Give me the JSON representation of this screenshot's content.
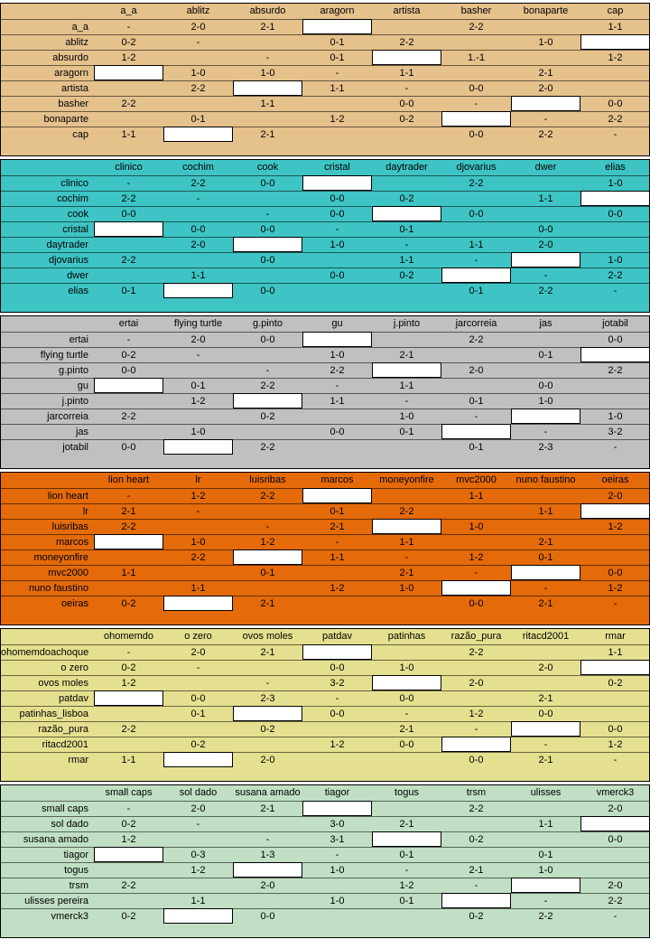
{
  "groups": [
    {
      "color": "#e5c18c",
      "columns": [
        "a_a",
        "ablitz",
        "absurdo",
        "aragorn",
        "artista",
        "basher",
        "bonaparte",
        "cap"
      ],
      "rows": [
        {
          "label": "a_a",
          "cells": [
            "-",
            "2-0",
            "2-1",
            null,
            "",
            "2-2",
            "",
            "1-1"
          ]
        },
        {
          "label": "ablitz",
          "cells": [
            "0-2",
            "-",
            "",
            "0-1",
            "2-2",
            "",
            "1-0",
            null
          ]
        },
        {
          "label": "absurdo",
          "cells": [
            "1-2",
            "",
            "-",
            "0-1",
            null,
            "1.-1",
            "",
            "1-2"
          ]
        },
        {
          "label": "aragorn",
          "cells": [
            null,
            "1-0",
            "1-0",
            "-",
            "1-1",
            "",
            "2-1",
            ""
          ]
        },
        {
          "label": "artista",
          "cells": [
            "",
            "2-2",
            null,
            "1-1",
            "-",
            "0-0",
            "2-0",
            ""
          ]
        },
        {
          "label": "basher",
          "cells": [
            "2-2",
            "",
            "1-1",
            "",
            "0-0",
            "-",
            null,
            "0-0"
          ]
        },
        {
          "label": "bonaparte",
          "cells": [
            "",
            "0-1",
            "",
            "1-2",
            "0-2",
            null,
            "-",
            "2-2"
          ]
        },
        {
          "label": "cap",
          "cells": [
            "1-1",
            null,
            "2-1",
            "",
            "",
            "0-0",
            "2-2",
            "-"
          ]
        }
      ]
    },
    {
      "color": "#3ec4c4",
      "columns": [
        "clinico",
        "cochim",
        "cook",
        "cristal",
        "daytrader",
        "djovarius",
        "dwer",
        "elias"
      ],
      "rows": [
        {
          "label": "clinico",
          "cells": [
            "-",
            "2-2",
            "0-0",
            null,
            "",
            "2-2",
            "",
            "1-0"
          ]
        },
        {
          "label": "cochim",
          "cells": [
            "2-2",
            "-",
            "",
            "0-0",
            "0-2",
            "",
            "1-1",
            null
          ]
        },
        {
          "label": "cook",
          "cells": [
            "0-0",
            "",
            "-",
            "0-0",
            null,
            "0-0",
            "",
            "0-0"
          ]
        },
        {
          "label": "cristal",
          "cells": [
            null,
            "0-0",
            "0-0",
            "-",
            "0-1",
            "",
            "0-0",
            ""
          ]
        },
        {
          "label": "daytrader",
          "cells": [
            "",
            "2-0",
            null,
            "1-0",
            "-",
            "1-1",
            "2-0",
            ""
          ]
        },
        {
          "label": "djovarius",
          "cells": [
            "2-2",
            "",
            "0-0",
            "",
            "1-1",
            "-",
            null,
            "1-0"
          ]
        },
        {
          "label": "dwer",
          "cells": [
            "",
            "1-1",
            "",
            "0-0",
            "0-2",
            null,
            "-",
            "2-2"
          ]
        },
        {
          "label": "elias",
          "cells": [
            "0-1",
            null,
            "0-0",
            "",
            "",
            "0-1",
            "2-2",
            "-"
          ]
        }
      ]
    },
    {
      "color": "#c0c0c0",
      "columns": [
        "ertai",
        "flying turtle",
        "g.pinto",
        "gu",
        "j.pinto",
        "jarcorreia",
        "jas",
        "jotabil"
      ],
      "rows": [
        {
          "label": "ertai",
          "cells": [
            "-",
            "2-0",
            "0-0",
            null,
            "",
            "2-2",
            "",
            "0-0"
          ]
        },
        {
          "label": "flying turtle",
          "cells": [
            "0-2",
            "-",
            "",
            "1-0",
            "2-1",
            "",
            "0-1",
            null
          ]
        },
        {
          "label": "g.pinto",
          "cells": [
            "0-0",
            "",
            "-",
            "2-2",
            null,
            "2-0",
            "",
            "2-2"
          ]
        },
        {
          "label": "gu",
          "cells": [
            null,
            "0-1",
            "2-2",
            "-",
            "1-1",
            "",
            "0-0",
            ""
          ]
        },
        {
          "label": "j.pinto",
          "cells": [
            "",
            "1-2",
            null,
            "1-1",
            "-",
            "0-1",
            "1-0",
            ""
          ]
        },
        {
          "label": "jarcorreia",
          "cells": [
            "2-2",
            "",
            "0-2",
            "",
            "1-0",
            "-",
            null,
            "1-0"
          ]
        },
        {
          "label": "jas",
          "cells": [
            "",
            "1-0",
            "",
            "0-0",
            "0-1",
            null,
            "-",
            "3-2"
          ]
        },
        {
          "label": "jotabil",
          "cells": [
            "0-0",
            null,
            "2-2",
            "",
            "",
            "0-1",
            "2-3",
            "-"
          ]
        }
      ]
    },
    {
      "color": "#e46a0a",
      "columns": [
        "lion heart",
        "lr",
        "luisribas",
        "marcos",
        "moneyonfire",
        "mvc2000",
        "nuno faustino",
        "oeiras"
      ],
      "rows": [
        {
          "label": "lion heart",
          "cells": [
            "-",
            "1-2",
            "2-2",
            null,
            "",
            "1-1",
            "",
            "2-0"
          ]
        },
        {
          "label": "lr",
          "cells": [
            "2-1",
            "-",
            "",
            "0-1",
            "2-2",
            "",
            "1-1",
            null
          ]
        },
        {
          "label": "luisribas",
          "cells": [
            "2-2",
            "",
            "-",
            "2-1",
            null,
            "1-0",
            "",
            "1-2"
          ]
        },
        {
          "label": "marcos",
          "cells": [
            null,
            "1-0",
            "1-2",
            "-",
            "1-1",
            "",
            "2-1",
            ""
          ]
        },
        {
          "label": "moneyonfire",
          "cells": [
            "",
            "2-2",
            null,
            "1-1",
            "-",
            "1-2",
            "0-1",
            ""
          ]
        },
        {
          "label": "mvc2000",
          "cells": [
            "1-1",
            "",
            "0-1",
            "",
            "2-1",
            "-",
            null,
            "0-0"
          ]
        },
        {
          "label": "nuno faustino",
          "cells": [
            "",
            "1-1",
            "",
            "1-2",
            "1-0",
            null,
            "-",
            "1-2"
          ]
        },
        {
          "label": "oeiras",
          "cells": [
            "0-2",
            null,
            "2-1",
            "",
            "",
            "0-0",
            "2-1",
            "-"
          ]
        }
      ]
    },
    {
      "color": "#e5e08f",
      "columns": [
        "ohomemdo",
        "o zero",
        "ovos moles",
        "patdav",
        "patinhas",
        "razão_pura",
        "ritacd2001",
        "rmar"
      ],
      "rows": [
        {
          "label": "ohomemdoachoque",
          "cells": [
            "-",
            "2-0",
            "2-1",
            null,
            "",
            "2-2",
            "",
            "1-1"
          ]
        },
        {
          "label": "o zero",
          "cells": [
            "0-2",
            "-",
            "",
            "0-0",
            "1-0",
            "",
            "2-0",
            null
          ]
        },
        {
          "label": "ovos moles",
          "cells": [
            "1-2",
            "",
            "-",
            "3-2",
            null,
            "2-0",
            "",
            "0-2"
          ]
        },
        {
          "label": "patdav",
          "cells": [
            null,
            "0-0",
            "2-3",
            "-",
            "0-0",
            "",
            "2-1",
            ""
          ]
        },
        {
          "label": "patinhas_lisboa",
          "cells": [
            "",
            "0-1",
            null,
            "0-0",
            "-",
            "1-2",
            "0-0",
            ""
          ]
        },
        {
          "label": "razão_pura",
          "cells": [
            "2-2",
            "",
            "0-2",
            "",
            "2-1",
            "-",
            null,
            "0-0"
          ]
        },
        {
          "label": "ritacd2001",
          "cells": [
            "",
            "0-2",
            "",
            "1-2",
            "0-0",
            null,
            "-",
            "1-2"
          ]
        },
        {
          "label": "rmar",
          "cells": [
            "1-1",
            null,
            "2-0",
            "",
            "",
            "0-0",
            "2-1",
            "-"
          ]
        }
      ]
    },
    {
      "color": "#c0dfc4",
      "columns": [
        "small caps",
        "sol dado",
        "susana amado",
        "tiagor",
        "togus",
        "trsm",
        "ulisses",
        "vmerck3"
      ],
      "rows": [
        {
          "label": "small caps",
          "cells": [
            "-",
            "2-0",
            "2-1",
            null,
            "",
            "2-2",
            "",
            "2-0"
          ]
        },
        {
          "label": "sol dado",
          "cells": [
            "0-2",
            "-",
            "",
            "3-0",
            "2-1",
            "",
            "1-1",
            null
          ]
        },
        {
          "label": "susana amado",
          "cells": [
            "1-2",
            "",
            "-",
            "3-1",
            null,
            "0-2",
            "",
            "0-0"
          ]
        },
        {
          "label": "tiagor",
          "cells": [
            null,
            "0-3",
            "1-3",
            "-",
            "0-1",
            "",
            "0-1",
            ""
          ]
        },
        {
          "label": "togus",
          "cells": [
            "",
            "1-2",
            null,
            "1-0",
            "-",
            "2-1",
            "1-0",
            ""
          ]
        },
        {
          "label": "trsm",
          "cells": [
            "2-2",
            "",
            "2-0",
            "",
            "1-2",
            "-",
            null,
            "2-0"
          ]
        },
        {
          "label": "ulisses pereira",
          "cells": [
            "",
            "1-1",
            "",
            "1-0",
            "0-1",
            null,
            "-",
            "2-2"
          ]
        },
        {
          "label": "vmerck3",
          "cells": [
            "0-2",
            null,
            "0-0",
            "",
            "",
            "0-2",
            "2-2",
            "-"
          ]
        }
      ]
    }
  ]
}
